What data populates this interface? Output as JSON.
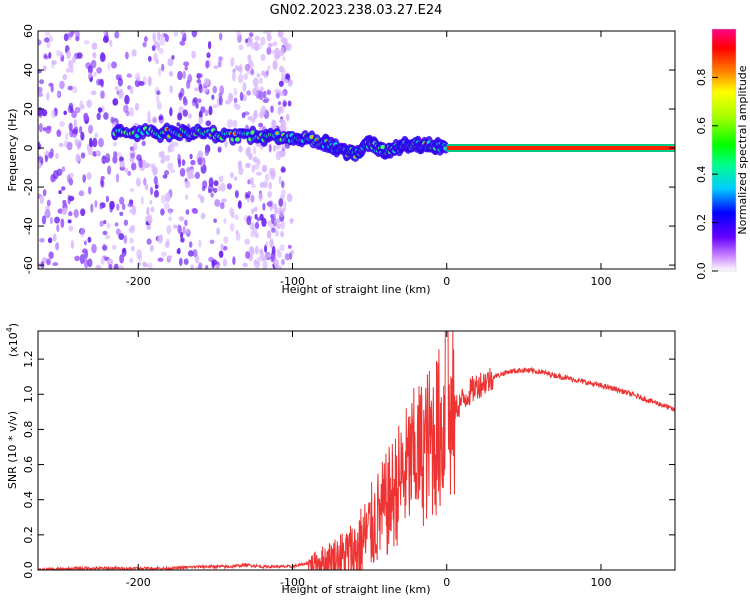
{
  "title": "GN02.2023.238.03.27.E24",
  "chart_data": [
    {
      "type": "heatmap",
      "title": "GN02.2023.238.03.27.E24",
      "xlabel": "Height of straight line (km)",
      "ylabel": "Frequency (Hz)",
      "xlim": [
        -265,
        148
      ],
      "ylim": [
        -62,
        60
      ],
      "xticks": [
        -200,
        -100,
        0,
        100
      ],
      "yticks": [
        60,
        40,
        20,
        0,
        -20,
        -40,
        -60
      ],
      "colorbar": {
        "label": "Normalized spectral amplitude",
        "range": [
          0.0,
          1.0
        ],
        "ticks": [
          0.0,
          0.2,
          0.4,
          0.6,
          0.8
        ]
      },
      "features": {
        "noise_region_x": [
          -265,
          -100
        ],
        "dominant_frequency_track": [
          {
            "x": -215,
            "f": 8
          },
          {
            "x": -190,
            "f": 8
          },
          {
            "x": -170,
            "f": 8
          },
          {
            "x": -150,
            "f": 7
          },
          {
            "x": -130,
            "f": 6
          },
          {
            "x": -110,
            "f": 6
          },
          {
            "x": -95,
            "f": 5
          },
          {
            "x": -80,
            "f": 3
          },
          {
            "x": -70,
            "f": 0
          },
          {
            "x": -60,
            "f": -3
          },
          {
            "x": -50,
            "f": 2
          },
          {
            "x": -40,
            "f": -2
          },
          {
            "x": -30,
            "f": 1
          },
          {
            "x": -20,
            "f": 2
          },
          {
            "x": -10,
            "f": 1
          },
          {
            "x": 0,
            "f": 0
          },
          {
            "x": 148,
            "f": 0
          }
        ],
        "steady_band_x": [
          0,
          148
        ],
        "steady_band_frequency": 0
      }
    },
    {
      "type": "line",
      "xlabel": "Height of straight line (km)",
      "ylabel": "SNR (10 * v/v)",
      "scale_label": "(x10",
      "scale_exp": "4",
      "scale_close": ")",
      "xlim": [
        -265,
        148
      ],
      "ylim": [
        0.0,
        1.36
      ],
      "xticks": [
        -200,
        -100,
        0,
        100
      ],
      "yticks": [
        0.0,
        0.2,
        0.4,
        0.6,
        0.8,
        1.0,
        1.2
      ],
      "ytick_labels": [
        "0.0",
        "0.2",
        "0.4",
        "0.6",
        "0.8",
        "1.0",
        "1.2"
      ],
      "series": [
        {
          "name": "SNR",
          "color": "#ee3333",
          "x": [
            -265,
            -240,
            -220,
            -200,
            -180,
            -160,
            -140,
            -130,
            -120,
            -110,
            -100,
            -90,
            -80,
            -70,
            -60,
            -55,
            -50,
            -45,
            -40,
            -35,
            -30,
            -25,
            -20,
            -15,
            -10,
            -5,
            0,
            5,
            10,
            15,
            20,
            30,
            40,
            50,
            60,
            70,
            80,
            90,
            100,
            110,
            120,
            130,
            140,
            148
          ],
          "values": [
            0.0,
            0.01,
            0.01,
            0.01,
            0.01,
            0.02,
            0.02,
            0.03,
            0.02,
            0.02,
            0.02,
            0.04,
            0.06,
            0.08,
            0.12,
            0.18,
            0.25,
            0.32,
            0.38,
            0.46,
            0.55,
            0.62,
            0.7,
            0.72,
            0.78,
            0.84,
            0.88,
            0.92,
            0.97,
            1.02,
            1.06,
            1.1,
            1.13,
            1.14,
            1.13,
            1.11,
            1.09,
            1.07,
            1.05,
            1.03,
            1.0,
            0.97,
            0.94,
            0.91
          ]
        }
      ]
    }
  ]
}
